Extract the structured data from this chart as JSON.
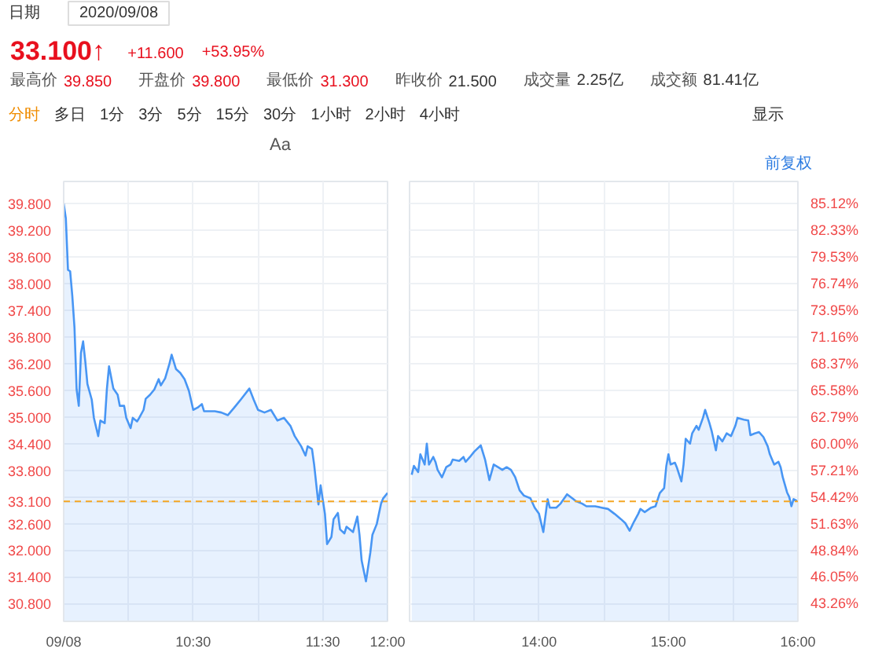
{
  "chart_data": [
    {
      "type": "area",
      "title": "33.100↑",
      "annotations": [
        "日期",
        "2020/09/08",
        "+11.600",
        "+53.95%",
        "最高价",
        "39.850",
        "开盘价",
        "39.800",
        "最低价",
        "31.300",
        "昨收价",
        "21.500",
        "成交量",
        "2.25亿",
        "成交额",
        "81.41亿",
        "分时",
        "多日",
        "1分",
        "3分",
        "5分",
        "15分",
        "30分",
        "1小时",
        "2小时",
        "4小时",
        "显示",
        "Aa",
        "前复权"
      ],
      "x": [
        "2020-09-08T09:30",
        "2020-09-08T09:31",
        "2020-09-08T09:32",
        "2020-09-08T09:33",
        "2020-09-08T09:34",
        "2020-09-08T09:35",
        "2020-09-08T09:36",
        "2020-09-08T09:37",
        "2020-09-08T09:38",
        "2020-09-08T09:39",
        "2020-09-08T09:40",
        "2020-09-08T09:41",
        "2020-09-08T09:43",
        "2020-09-08T09:44",
        "2020-09-08T09:46",
        "2020-09-08T09:47",
        "2020-09-08T09:49",
        "2020-09-08T09:50",
        "2020-09-08T09:51",
        "2020-09-08T09:53",
        "2020-09-08T09:55",
        "2020-09-08T09:56",
        "2020-09-08T09:58",
        "2020-09-08T09:59",
        "2020-09-08T10:01",
        "2020-09-08T10:02",
        "2020-09-08T10:04",
        "2020-09-08T10:05",
        "2020-09-08T10:07",
        "2020-09-08T10:08",
        "2020-09-08T10:10",
        "2020-09-08T10:12",
        "2020-09-08T10:14",
        "2020-09-08T10:15",
        "2020-09-08T10:17",
        "2020-09-08T10:19",
        "2020-09-08T10:20",
        "2020-09-08T10:22",
        "2020-09-08T10:24",
        "2020-09-08T10:26",
        "2020-09-08T10:28",
        "2020-09-08T10:30",
        "2020-09-08T10:32",
        "2020-09-08T10:34",
        "2020-09-08T10:35",
        "2020-09-08T10:40",
        "2020-09-08T10:43",
        "2020-09-08T10:46",
        "2020-09-08T10:49",
        "2020-09-08T10:52",
        "2020-09-08T10:56",
        "2020-09-08T10:58",
        "2020-09-08T11:00",
        "2020-09-08T11:03",
        "2020-09-08T11:06",
        "2020-09-08T11:09",
        "2020-09-08T11:12",
        "2020-09-08T11:15",
        "2020-09-08T11:17",
        "2020-09-08T11:20",
        "2020-09-08T11:22",
        "2020-09-08T11:23",
        "2020-09-08T11:25",
        "2020-09-08T11:26",
        "2020-09-08T11:28",
        "2020-09-08T11:29",
        "2020-09-08T11:31",
        "2020-09-08T11:32",
        "2020-09-08T11:34",
        "2020-09-08T11:35",
        "2020-09-08T11:37",
        "2020-09-08T11:38",
        "2020-09-08T11:40",
        "2020-09-08T11:41",
        "2020-09-08T11:44",
        "2020-09-08T11:46",
        "2020-09-08T11:47",
        "2020-09-08T11:48",
        "2020-09-08T11:50",
        "2020-09-08T11:52",
        "2020-09-08T11:53",
        "2020-09-08T11:55",
        "2020-09-08T11:57",
        "2020-09-08T11:58",
        "2020-09-08T12:00"
      ],
      "series": [
        {
          "color": "#4896f4",
          "values": [
            39.8,
            39.47,
            38.31,
            38.28,
            37.72,
            37.02,
            35.62,
            35.25,
            36.44,
            36.7,
            36.26,
            35.74,
            35.39,
            34.98,
            34.57,
            34.92,
            34.86,
            35.62,
            36.14,
            35.64,
            35.5,
            35.25,
            35.25,
            34.98,
            34.75,
            34.98,
            34.9,
            34.98,
            35.16,
            35.41,
            35.5,
            35.62,
            35.85,
            35.71,
            35.87,
            36.2,
            36.4,
            36.08,
            35.99,
            35.85,
            35.59,
            35.16,
            35.21,
            35.29,
            35.13,
            35.13,
            35.1,
            35.04,
            35.21,
            35.39,
            35.64,
            35.39,
            35.16,
            35.1,
            35.16,
            34.92,
            34.98,
            34.8,
            34.57,
            34.34,
            34.13,
            34.34,
            34.28,
            33.93,
            33.03,
            33.46,
            32.82,
            32.14,
            32.3,
            32.7,
            32.84,
            32.47,
            32.38,
            32.53,
            32.41,
            32.76,
            32.35,
            31.77,
            31.3,
            31.94,
            32.35,
            32.59,
            33.05,
            33.17,
            33.29
          ]
        }
      ],
      "xlim": [
        "2020-09-08T09:30",
        "2020-09-08T12:00"
      ],
      "xticks": [
        {
          "value": "2020-09-08T09:30",
          "label": "09/08"
        },
        {
          "value": "2020-09-08T10:00",
          "label": null
        },
        {
          "value": "2020-09-08T10:30",
          "label": "10:30"
        },
        {
          "value": "2020-09-08T11:00",
          "label": null
        },
        {
          "value": "2020-09-08T11:30",
          "label": "11:30"
        },
        {
          "value": "2020-09-08T12:00",
          "label": "12:00"
        }
      ],
      "ylim": [
        30.4,
        40.3
      ],
      "yticks": [
        {
          "value": 39.8,
          "label": "39.800"
        },
        {
          "value": 39.2,
          "label": "39.200"
        },
        {
          "value": 38.6,
          "label": "38.600"
        },
        {
          "value": 38.0,
          "label": "38.000"
        },
        {
          "value": 37.4,
          "label": "37.400"
        },
        {
          "value": 36.8,
          "label": "36.800"
        },
        {
          "value": 36.2,
          "label": "36.200"
        },
        {
          "value": 35.6,
          "label": "35.600"
        },
        {
          "value": 35.0,
          "label": "35.000"
        },
        {
          "value": 34.4,
          "label": "34.400"
        },
        {
          "value": 33.8,
          "label": "33.800"
        },
        {
          "value": 33.2,
          "label": null
        },
        {
          "value": 33.1,
          "label": "33.100"
        },
        {
          "value": 32.6,
          "label": "32.600"
        },
        {
          "value": 32.0,
          "label": "32.000"
        },
        {
          "value": 31.4,
          "label": "31.400"
        },
        {
          "value": 30.8,
          "label": "30.800"
        }
      ],
      "ref_lines": [
        {
          "axis": "y",
          "value": 33.1,
          "color": "#f5a623",
          "line_style": "dashed"
        }
      ],
      "grid": true
    },
    {
      "type": "area",
      "x": [
        "2020-09-08T13:01",
        "2020-09-08T13:02",
        "2020-09-08T13:04",
        "2020-09-08T13:05",
        "2020-09-08T13:07",
        "2020-09-08T13:08",
        "2020-09-08T13:09",
        "2020-09-08T13:11",
        "2020-09-08T13:12",
        "2020-09-08T13:13",
        "2020-09-08T13:15",
        "2020-09-08T13:17",
        "2020-09-08T13:19",
        "2020-09-08T13:20",
        "2020-09-08T13:23",
        "2020-09-08T13:25",
        "2020-09-08T13:26",
        "2020-09-08T13:28",
        "2020-09-08T13:30",
        "2020-09-08T13:33",
        "2020-09-08T13:35",
        "2020-09-08T13:37",
        "2020-09-08T13:39",
        "2020-09-08T13:41",
        "2020-09-08T13:43",
        "2020-09-08T13:45",
        "2020-09-08T13:47",
        "2020-09-08T13:49",
        "2020-09-08T13:51",
        "2020-09-08T13:53",
        "2020-09-08T13:56",
        "2020-09-08T13:58",
        "2020-09-08T14:00",
        "2020-09-08T14:02",
        "2020-09-08T14:04",
        "2020-09-08T14:05",
        "2020-09-08T14:08",
        "2020-09-08T14:10",
        "2020-09-08T14:13",
        "2020-09-08T14:16",
        "2020-09-08T14:17",
        "2020-09-08T14:20",
        "2020-09-08T14:22",
        "2020-09-08T14:26",
        "2020-09-08T14:29",
        "2020-09-08T14:32",
        "2020-09-08T14:35",
        "2020-09-08T14:38",
        "2020-09-08T14:40",
        "2020-09-08T14:42",
        "2020-09-08T14:44",
        "2020-09-08T14:46",
        "2020-09-08T14:47",
        "2020-09-08T14:49",
        "2020-09-08T14:52",
        "2020-09-08T14:54",
        "2020-09-08T14:56",
        "2020-09-08T14:58",
        "2020-09-08T14:59",
        "2020-09-08T15:00",
        "2020-09-08T15:01",
        "2020-09-08T15:03",
        "2020-09-08T15:04",
        "2020-09-08T15:06",
        "2020-09-08T15:07",
        "2020-09-08T15:08",
        "2020-09-08T15:10",
        "2020-09-08T15:11",
        "2020-09-08T15:13",
        "2020-09-08T15:14",
        "2020-09-08T15:16",
        "2020-09-08T15:17",
        "2020-09-08T15:19",
        "2020-09-08T15:20",
        "2020-09-08T15:22",
        "2020-09-08T15:23",
        "2020-09-08T15:25",
        "2020-09-08T15:27",
        "2020-09-08T15:29",
        "2020-09-08T15:31",
        "2020-09-08T15:32",
        "2020-09-08T15:35",
        "2020-09-08T15:37",
        "2020-09-08T15:38",
        "2020-09-08T15:40",
        "2020-09-08T15:42",
        "2020-09-08T15:44",
        "2020-09-08T15:46",
        "2020-09-08T15:47",
        "2020-09-08T15:49",
        "2020-09-08T15:51",
        "2020-09-08T15:52",
        "2020-09-08T15:53",
        "2020-09-08T15:55",
        "2020-09-08T15:56",
        "2020-09-08T15:57",
        "2020-09-08T15:58",
        "2020-09-08T16:00"
      ],
      "series": [
        {
          "color": "#4896f4",
          "values": [
            33.7,
            33.9,
            33.76,
            34.16,
            33.93,
            34.4,
            33.93,
            34.1,
            33.99,
            33.81,
            33.64,
            33.87,
            33.93,
            34.04,
            34.01,
            34.1,
            33.99,
            34.1,
            34.22,
            34.36,
            34.04,
            33.58,
            33.93,
            33.87,
            33.81,
            33.87,
            33.81,
            33.64,
            33.35,
            33.23,
            33.17,
            32.96,
            32.82,
            32.41,
            33.15,
            32.96,
            32.96,
            33.05,
            33.26,
            33.15,
            33.11,
            33.05,
            32.99,
            32.99,
            32.96,
            32.93,
            32.82,
            32.7,
            32.61,
            32.44,
            32.64,
            32.82,
            32.93,
            32.86,
            32.96,
            32.99,
            33.29,
            33.4,
            33.89,
            34.16,
            33.93,
            33.97,
            33.85,
            33.55,
            33.93,
            34.51,
            34.4,
            34.63,
            34.8,
            34.71,
            34.98,
            35.16,
            34.86,
            34.69,
            34.25,
            34.57,
            34.45,
            34.63,
            34.57,
            34.8,
            34.98,
            34.94,
            34.92,
            34.59,
            34.63,
            34.66,
            34.55,
            34.34,
            34.16,
            33.93,
            33.99,
            33.87,
            33.64,
            33.3,
            33.2,
            32.99,
            33.15,
            33.1
          ]
        }
      ],
      "xlim": [
        "2020-09-08T13:00",
        "2020-09-08T16:00"
      ],
      "xticks": [
        {
          "value": "2020-09-08T13:30",
          "label": null
        },
        {
          "value": "2020-09-08T14:00",
          "label": "14:00"
        },
        {
          "value": "2020-09-08T14:30",
          "label": null
        },
        {
          "value": "2020-09-08T15:00",
          "label": "15:00"
        },
        {
          "value": "2020-09-08T15:30",
          "label": null
        },
        {
          "value": "2020-09-08T16:00",
          "label": "16:00"
        }
      ],
      "ylim": [
        30.4,
        40.3
      ],
      "yticks": [
        39.8,
        39.2,
        38.6,
        38.0,
        37.4,
        36.8,
        36.2,
        35.6,
        35.0,
        34.4,
        33.8,
        33.2,
        32.6,
        32.0,
        31.4,
        30.8
      ],
      "y2lim": [
        41.4,
        87.44
      ],
      "y2ticks": [
        {
          "value": 85.12,
          "label": "85.12%"
        },
        {
          "value": 82.33,
          "label": "82.33%"
        },
        {
          "value": 79.53,
          "label": "79.53%"
        },
        {
          "value": 76.74,
          "label": "76.74%"
        },
        {
          "value": 73.95,
          "label": "73.95%"
        },
        {
          "value": 71.16,
          "label": "71.16%"
        },
        {
          "value": 68.37,
          "label": "68.37%"
        },
        {
          "value": 65.58,
          "label": "65.58%"
        },
        {
          "value": 62.79,
          "label": "62.79%"
        },
        {
          "value": 60.0,
          "label": "60.00%"
        },
        {
          "value": 57.21,
          "label": "57.21%"
        },
        {
          "value": 54.42,
          "label": "54.42%"
        },
        {
          "value": 51.63,
          "label": "51.63%"
        },
        {
          "value": 48.84,
          "label": "48.84%"
        },
        {
          "value": 46.05,
          "label": "46.05%"
        },
        {
          "value": 43.26,
          "label": "43.26%"
        }
      ],
      "ref_lines": [
        {
          "axis": "y",
          "value": 33.1,
          "color": "#f5a623",
          "line_style": "dashed"
        }
      ],
      "grid": true,
      "tick_labels": "x"
    }
  ]
}
